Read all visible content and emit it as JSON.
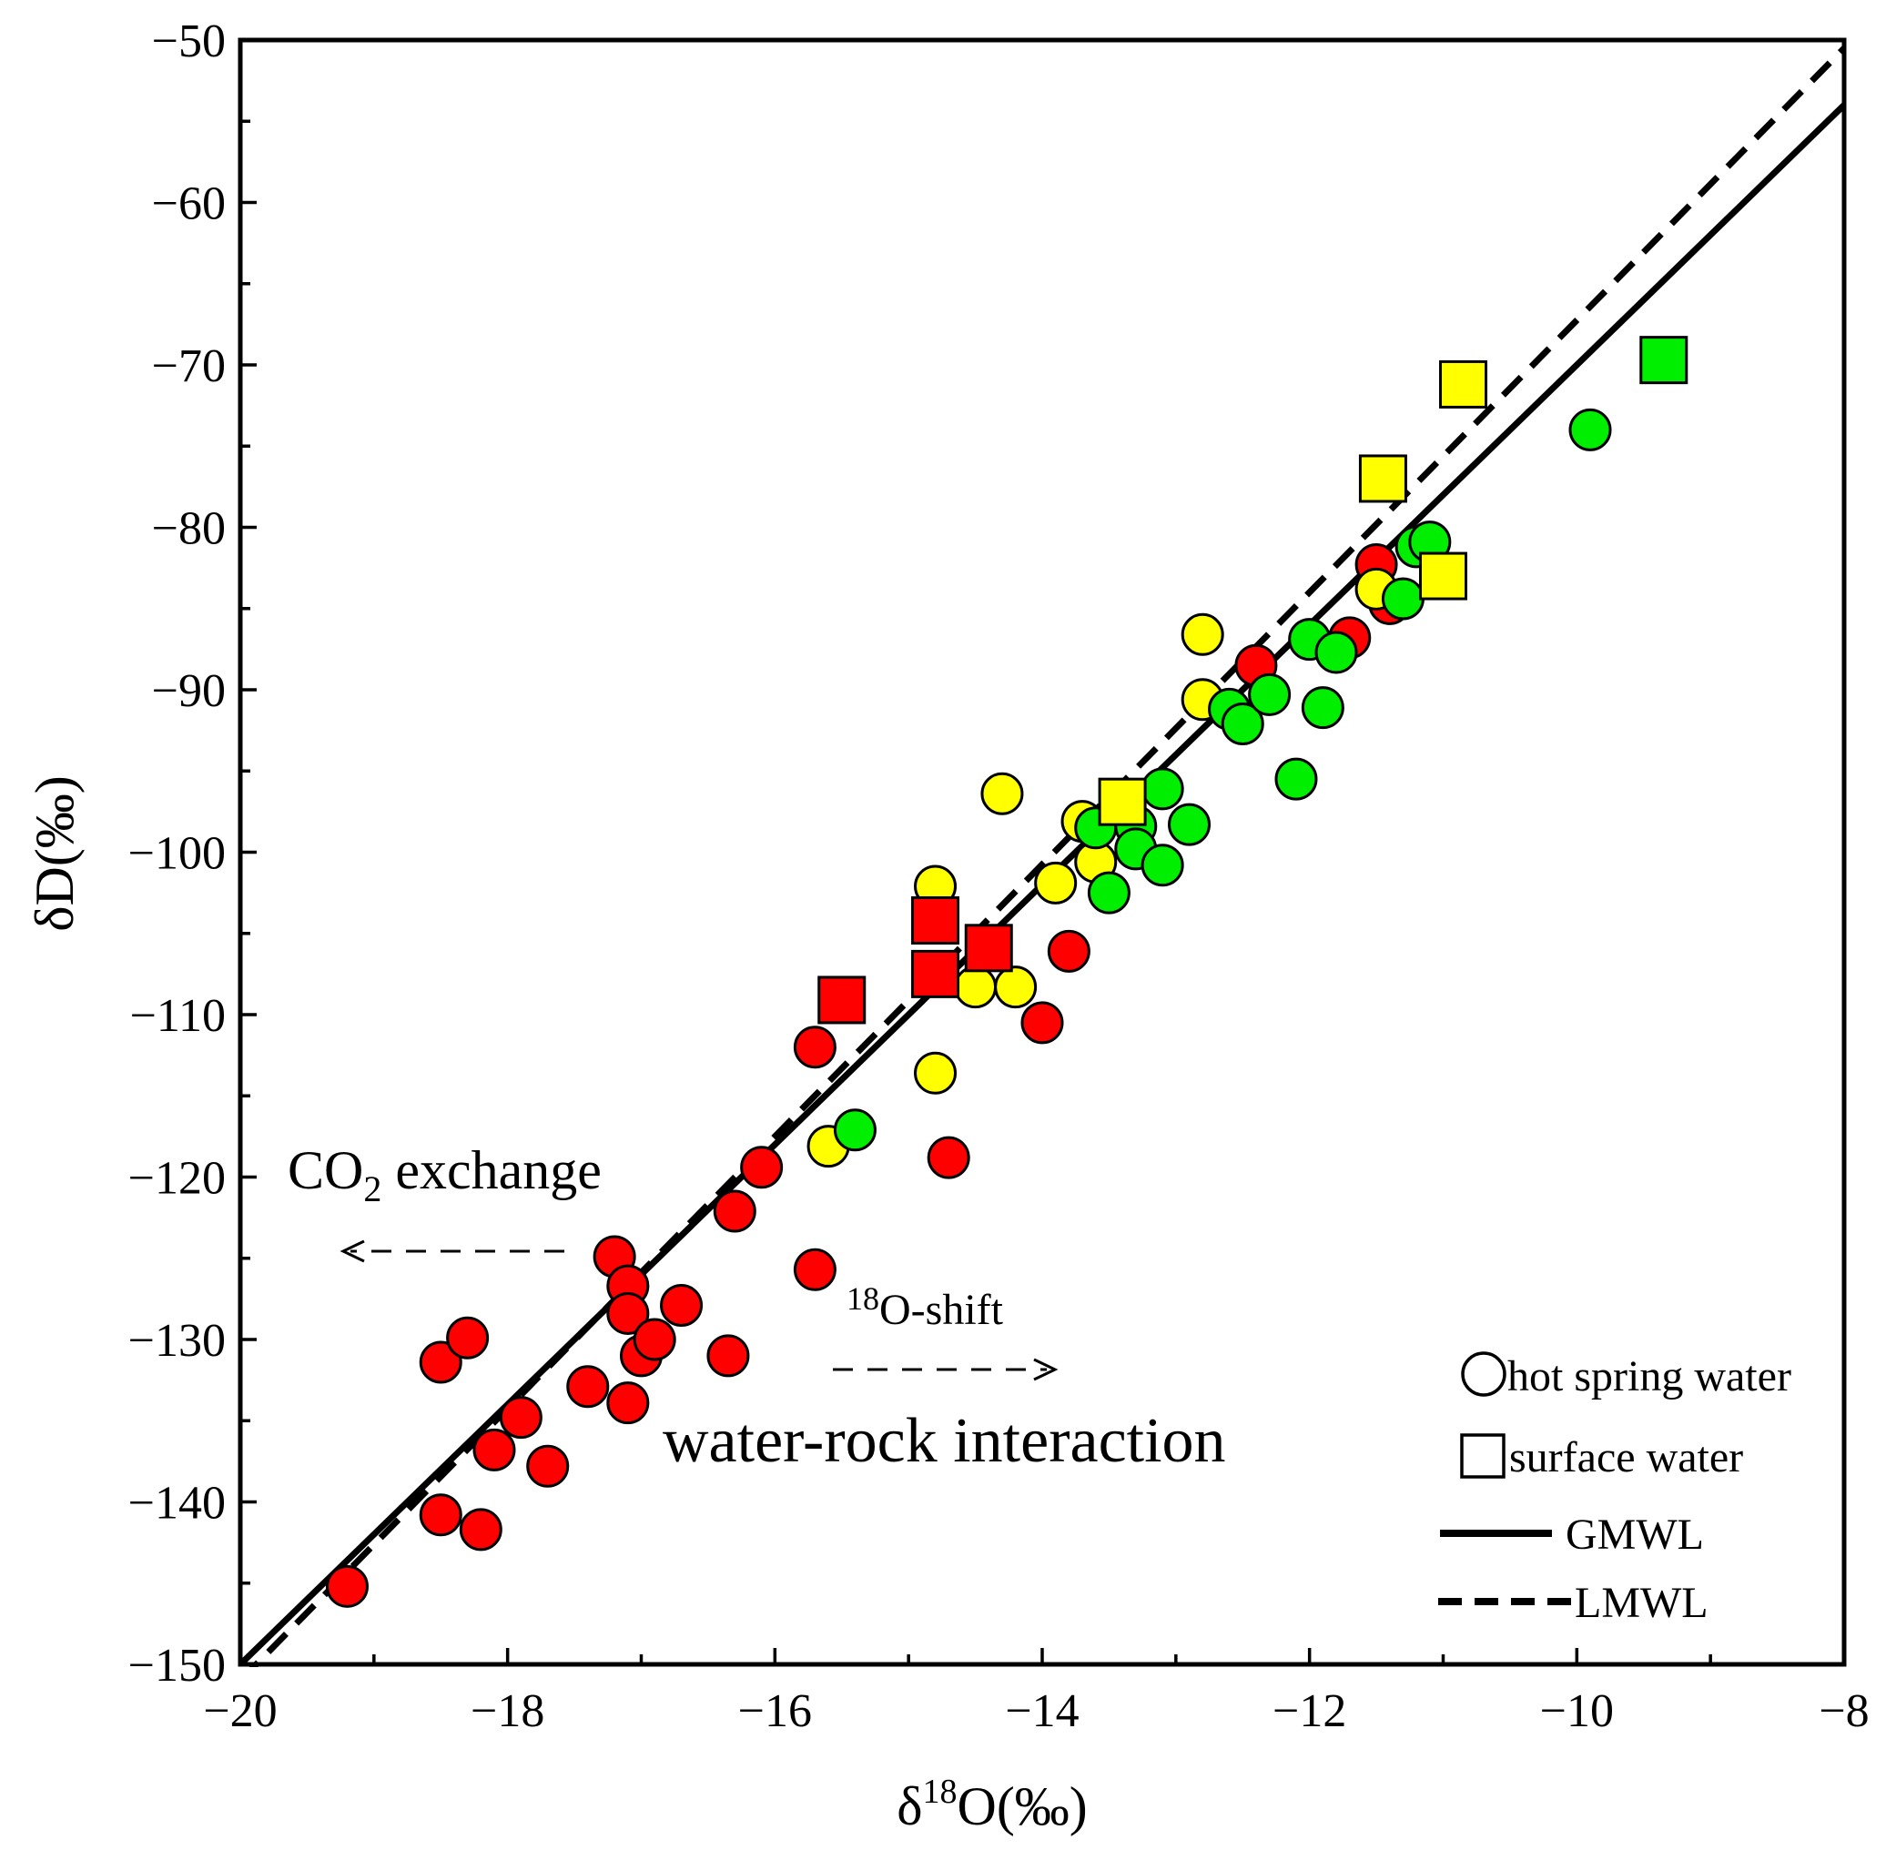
{
  "chart_data": {
    "type": "scatter",
    "xlabel": {
      "prefix": "δ",
      "sup": "18",
      "suffix": "O(‰)"
    },
    "ylabel": "δD(‰)",
    "xlim": [
      -20,
      -8
    ],
    "ylim": [
      -150,
      -50
    ],
    "x_ticks": [
      -20,
      -18,
      -16,
      -14,
      -12,
      -10,
      -8
    ],
    "x_tick_labels": [
      "−20",
      "−18",
      "−16",
      "−14",
      "−12",
      "−10",
      "−8"
    ],
    "y_ticks": [
      -50,
      -60,
      -70,
      -80,
      -90,
      -100,
      -110,
      -120,
      -130,
      -140,
      -150
    ],
    "y_tick_labels": [
      "−50",
      "−60",
      "−70",
      "−80",
      "−90",
      "−100",
      "−110",
      "−120",
      "−130",
      "−140",
      "−150"
    ],
    "colors": {
      "red": "#ff0000",
      "yellow": "#ffff00",
      "green": "#00ee00"
    },
    "lines": [
      {
        "name": "GMWL",
        "style": "solid",
        "slope": 8,
        "intercept": 10
      },
      {
        "name": "LMWL",
        "style": "dashed",
        "points": [
          [
            -20,
            -151
          ],
          [
            -8,
            -50.5
          ]
        ]
      }
    ],
    "series": [
      {
        "name": "hot spring water (red)",
        "marker": "circle",
        "color": "red",
        "points": [
          [
            -19.2,
            -145.2
          ],
          [
            -18.5,
            -131.4
          ],
          [
            -18.3,
            -129.9
          ],
          [
            -18.5,
            -140.8
          ],
          [
            -18.2,
            -141.7
          ],
          [
            -18.1,
            -136.8
          ],
          [
            -17.9,
            -134.8
          ],
          [
            -17.7,
            -137.8
          ],
          [
            -17.4,
            -132.9
          ],
          [
            -17.2,
            -124.9
          ],
          [
            -17.1,
            -126.7
          ],
          [
            -17.1,
            -128.4
          ],
          [
            -17.0,
            -131.0
          ],
          [
            -16.9,
            -130.0
          ],
          [
            -17.1,
            -133.9
          ],
          [
            -16.7,
            -127.9
          ],
          [
            -16.35,
            -131.0
          ],
          [
            -16.3,
            -122.1
          ],
          [
            -16.1,
            -119.4
          ],
          [
            -15.7,
            -112.0
          ],
          [
            -15.7,
            -125.7
          ],
          [
            -14.7,
            -118.8
          ],
          [
            -14.0,
            -110.5
          ],
          [
            -13.8,
            -106.1
          ],
          [
            -12.4,
            -88.5
          ],
          [
            -11.7,
            -86.8
          ],
          [
            -11.5,
            -82.3
          ],
          [
            -11.4,
            -84.7
          ]
        ]
      },
      {
        "name": "hot spring water (yellow)",
        "marker": "circle",
        "color": "yellow",
        "points": [
          [
            -15.6,
            -118.1
          ],
          [
            -14.8,
            -113.6
          ],
          [
            -14.8,
            -102.1
          ],
          [
            -14.5,
            -108.3
          ],
          [
            -14.2,
            -108.3
          ],
          [
            -14.3,
            -96.4
          ],
          [
            -13.9,
            -101.9
          ],
          [
            -13.6,
            -100.6
          ],
          [
            -13.7,
            -98.1
          ],
          [
            -12.8,
            -86.6
          ],
          [
            -12.8,
            -90.6
          ],
          [
            -11.5,
            -83.8
          ]
        ]
      },
      {
        "name": "hot spring water (green)",
        "marker": "circle",
        "color": "green",
        "points": [
          [
            -15.4,
            -117.1
          ],
          [
            -13.6,
            -98.5
          ],
          [
            -13.5,
            -102.5
          ],
          [
            -13.3,
            -98.4
          ],
          [
            -13.3,
            -99.8
          ],
          [
            -13.1,
            -100.8
          ],
          [
            -13.1,
            -96.1
          ],
          [
            -12.9,
            -98.3
          ],
          [
            -12.6,
            -91.2
          ],
          [
            -12.5,
            -92.1
          ],
          [
            -12.3,
            -90.3
          ],
          [
            -12.1,
            -95.5
          ],
          [
            -12.0,
            -86.9
          ],
          [
            -11.9,
            -91.1
          ],
          [
            -11.8,
            -87.7
          ],
          [
            -11.3,
            -84.4
          ],
          [
            -11.2,
            -81.2
          ],
          [
            -11.1,
            -80.9
          ],
          [
            -9.9,
            -74.0
          ]
        ]
      },
      {
        "name": "surface water (red)",
        "marker": "square",
        "color": "red",
        "points": [
          [
            -15.5,
            -109.1
          ],
          [
            -14.8,
            -104.2
          ],
          [
            -14.8,
            -107.5
          ],
          [
            -14.4,
            -105.9
          ]
        ]
      },
      {
        "name": "surface water (yellow)",
        "marker": "square",
        "color": "yellow",
        "points": [
          [
            -13.4,
            -96.9
          ],
          [
            -11.45,
            -77.0
          ],
          [
            -11.0,
            -83.0
          ],
          [
            -10.85,
            -71.2
          ]
        ]
      },
      {
        "name": "surface water (green)",
        "marker": "square",
        "color": "green",
        "points": [
          [
            -9.35,
            -69.7
          ]
        ]
      }
    ],
    "annotations": {
      "co2_main": "CO",
      "co2_sub": "2",
      "co2_rest": " exchange",
      "o18_sup": "18",
      "o18_rest": "O-shift",
      "water_rock": "water-rock interaction"
    },
    "legend": {
      "position": "bottom-right",
      "items": [
        {
          "symbol": "circle",
          "label": "hot spring water"
        },
        {
          "symbol": "square",
          "label": "surface water"
        },
        {
          "symbol": "solid-line",
          "label": "GMWL"
        },
        {
          "symbol": "dashed-line",
          "label": "LMWL"
        }
      ]
    }
  }
}
